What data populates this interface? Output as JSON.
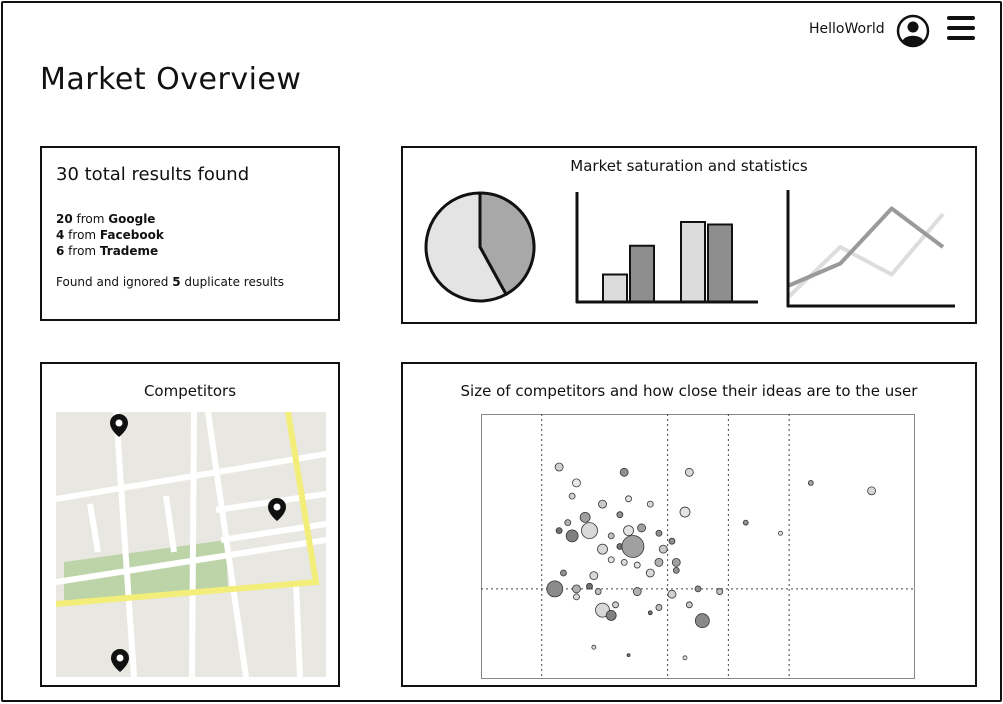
{
  "header": {
    "username": "HelloWorld",
    "user_icon": "user-circle-icon",
    "menu_icon": "hamburger-menu-icon"
  },
  "page_title": "Market Overview",
  "results": {
    "title": "30 total results found",
    "sources": [
      {
        "count": "20",
        "sep": " from ",
        "name": "Google"
      },
      {
        "count": "4",
        "sep": " from ",
        "name": "Facebook"
      },
      {
        "count": "6",
        "sep": " from ",
        "name": "Trademe"
      }
    ],
    "duplicates_prefix": "Found and ignored ",
    "duplicates_count": "5",
    "duplicates_suffix": " duplicate results"
  },
  "stats": {
    "title": "Market saturation and statistics"
  },
  "competitors": {
    "title": "Competitors",
    "map_icon": "map-pin-icon"
  },
  "scatter": {
    "title": "Size of competitors and how close their ideas are to the user"
  },
  "chart_data": [
    {
      "type": "pie",
      "values": [
        42,
        58
      ],
      "colors": [
        "#a8a8a8",
        "#e4e4e4"
      ]
    },
    {
      "type": "bar",
      "series": [
        {
          "values": [
            22,
            64
          ],
          "color": "#dcdcdc"
        },
        {
          "values": [
            45,
            62
          ],
          "color": "#8e8e8e"
        }
      ],
      "ylim": [
        0,
        80
      ]
    },
    {
      "type": "line",
      "series": [
        {
          "values": [
            6,
            14,
            34,
            20
          ],
          "color": "#9a9a9a"
        },
        {
          "values": [
            2,
            20,
            10,
            32
          ],
          "color": "#dddddd"
        }
      ],
      "ylim": [
        0,
        40
      ]
    },
    {
      "type": "scatter",
      "xlim": [
        0,
        100
      ],
      "ylim": [
        0,
        100
      ],
      "grid_x": [
        14,
        43,
        57,
        71
      ],
      "grid_y": [
        34
      ],
      "points": [
        {
          "x": 18,
          "y": 80,
          "r": 4,
          "c": "#d0d0d0"
        },
        {
          "x": 33,
          "y": 78,
          "r": 4,
          "c": "#909090"
        },
        {
          "x": 48,
          "y": 78,
          "r": 4,
          "c": "#d8d8d8"
        },
        {
          "x": 22,
          "y": 74,
          "r": 4,
          "c": "#e8e8e8"
        },
        {
          "x": 21,
          "y": 69,
          "r": 3,
          "c": "#d0d0d0"
        },
        {
          "x": 28,
          "y": 66,
          "r": 4,
          "c": "#c8c8c8"
        },
        {
          "x": 34,
          "y": 68,
          "r": 3,
          "c": "#e4e4e4"
        },
        {
          "x": 39,
          "y": 66,
          "r": 3,
          "c": "#d8d8d8"
        },
        {
          "x": 47,
          "y": 63,
          "r": 5,
          "c": "#e4e4e4"
        },
        {
          "x": 32,
          "y": 62,
          "r": 3,
          "c": "#909090"
        },
        {
          "x": 24,
          "y": 61,
          "r": 5,
          "c": "#a0a0a0"
        },
        {
          "x": 20,
          "y": 59,
          "r": 3,
          "c": "#b0b0b0"
        },
        {
          "x": 25,
          "y": 56,
          "r": 8,
          "c": "#d8d8d8"
        },
        {
          "x": 21,
          "y": 54,
          "r": 6,
          "c": "#808080"
        },
        {
          "x": 18,
          "y": 56,
          "r": 3,
          "c": "#707070"
        },
        {
          "x": 30,
          "y": 54,
          "r": 3,
          "c": "#c0c0c0"
        },
        {
          "x": 34,
          "y": 56,
          "r": 5,
          "c": "#e4e4e4"
        },
        {
          "x": 37,
          "y": 57,
          "r": 4,
          "c": "#a0a0a0"
        },
        {
          "x": 41,
          "y": 55,
          "r": 3,
          "c": "#909090"
        },
        {
          "x": 28,
          "y": 49,
          "r": 5,
          "c": "#d8d8d8"
        },
        {
          "x": 32,
          "y": 50,
          "r": 3,
          "c": "#707070"
        },
        {
          "x": 35,
          "y": 50,
          "r": 11,
          "c": "#a0a0a0"
        },
        {
          "x": 42,
          "y": 49,
          "r": 4,
          "c": "#c8c8c8"
        },
        {
          "x": 44,
          "y": 52,
          "r": 3,
          "c": "#909090"
        },
        {
          "x": 30,
          "y": 45,
          "r": 3,
          "c": "#e4e4e4"
        },
        {
          "x": 33,
          "y": 44,
          "r": 3,
          "c": "#d8d8d8"
        },
        {
          "x": 36,
          "y": 43,
          "r": 3,
          "c": "#e4e4e4"
        },
        {
          "x": 41,
          "y": 44,
          "r": 4,
          "c": "#b0b0b0"
        },
        {
          "x": 45,
          "y": 44,
          "r": 4,
          "c": "#a0a0a0"
        },
        {
          "x": 39,
          "y": 40,
          "r": 4,
          "c": "#d8d8d8"
        },
        {
          "x": 45,
          "y": 41,
          "r": 3,
          "c": "#909090"
        },
        {
          "x": 26,
          "y": 39,
          "r": 4,
          "c": "#d8d8d8"
        },
        {
          "x": 19,
          "y": 40,
          "r": 3,
          "c": "#909090"
        },
        {
          "x": 17,
          "y": 34,
          "r": 8,
          "c": "#8a8a8a"
        },
        {
          "x": 22,
          "y": 34,
          "r": 4,
          "c": "#b0b0b0"
        },
        {
          "x": 25,
          "y": 35,
          "r": 3,
          "c": "#707070"
        },
        {
          "x": 27,
          "y": 33,
          "r": 3,
          "c": "#c0c0c0"
        },
        {
          "x": 22,
          "y": 31,
          "r": 3,
          "c": "#d8d8d8"
        },
        {
          "x": 36,
          "y": 33,
          "r": 4,
          "c": "#b0b0b0"
        },
        {
          "x": 44,
          "y": 32,
          "r": 4,
          "c": "#d0d0d0"
        },
        {
          "x": 50,
          "y": 34,
          "r": 3,
          "c": "#909090"
        },
        {
          "x": 55,
          "y": 33,
          "r": 3,
          "c": "#c0c0c0"
        },
        {
          "x": 28,
          "y": 26,
          "r": 7,
          "c": "#d8d8d8"
        },
        {
          "x": 30,
          "y": 24,
          "r": 5,
          "c": "#808080"
        },
        {
          "x": 31,
          "y": 28,
          "r": 3,
          "c": "#d0d0d0"
        },
        {
          "x": 39,
          "y": 25,
          "r": 2,
          "c": "#707070"
        },
        {
          "x": 51,
          "y": 22,
          "r": 7,
          "c": "#8a8a8a"
        },
        {
          "x": 48,
          "y": 28,
          "r": 3,
          "c": "#c8c8c8"
        },
        {
          "x": 41,
          "y": 27,
          "r": 3,
          "c": "#c0c0c0"
        },
        {
          "x": 26,
          "y": 12,
          "r": 2,
          "c": "#d8d8d8"
        },
        {
          "x": 34,
          "y": 9,
          "r": 1.5,
          "c": "#707070"
        },
        {
          "x": 47,
          "y": 8,
          "r": 2,
          "c": "#e4e4e4"
        },
        {
          "x": 61,
          "y": 59,
          "r": 2.5,
          "c": "#909090"
        },
        {
          "x": 69,
          "y": 55,
          "r": 2,
          "c": "#e4e4e4"
        },
        {
          "x": 76,
          "y": 74,
          "r": 2.5,
          "c": "#a0a0a0"
        },
        {
          "x": 90,
          "y": 71,
          "r": 4,
          "c": "#d8d8d8"
        }
      ]
    }
  ]
}
